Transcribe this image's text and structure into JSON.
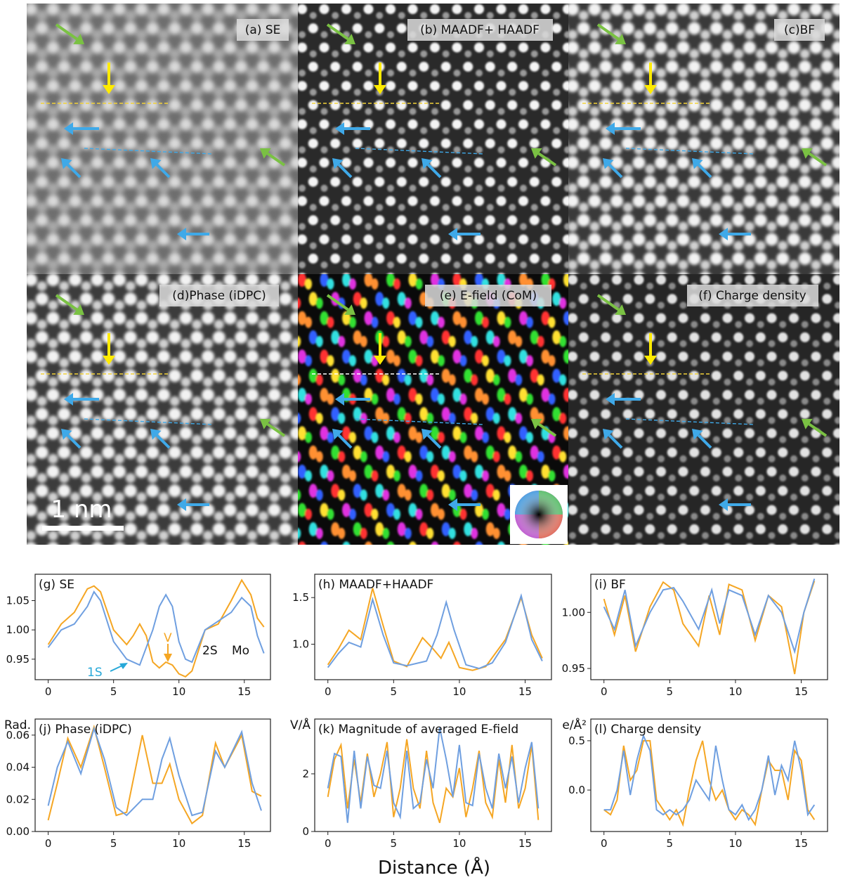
{
  "figure": {
    "image_panels": [
      {
        "label": "(a) SE",
        "mode": "gray-soft"
      },
      {
        "label": "(b) MAADF+ HAADF",
        "mode": "gray-sharp"
      },
      {
        "label": "(c)BF",
        "mode": "gray-bright"
      },
      {
        "label": "(d)Phase (iDPC)",
        "mode": "gray-bright"
      },
      {
        "label": "(e) E-field (CoM)",
        "mode": "color"
      },
      {
        "label": "(f) Charge density",
        "mode": "gray-dark"
      }
    ],
    "scale_bar_label": "1 nm",
    "colors": {
      "yellow_arrow": "#ffeb00",
      "blue_arrow": "#3fa9e8",
      "green_arrow": "#7ac143",
      "yellow_line": "#f2d23a",
      "blue_line": "#3fa9e8",
      "series_orange": "#f5a623",
      "series_blue": "#6f9fe0"
    },
    "annotations": {
      "v_label": "V",
      "s2_label": "2S",
      "mo_label": "Mo",
      "s1_label": "1S"
    },
    "xlabel": "Distance (Å)"
  },
  "chart_data": [
    {
      "type": "line",
      "title": "(g) SE",
      "ylabel": "",
      "xlim": [
        -1,
        17
      ],
      "ylim": [
        0.915,
        1.095
      ],
      "xticks": [
        0,
        5,
        10,
        15
      ],
      "xtick_labels": [
        "0",
        "5",
        "10",
        "15"
      ],
      "yticks": [
        0.95,
        1.0,
        1.05
      ],
      "ytick_labels": [
        "0.95",
        "1.00",
        "1.05"
      ],
      "series": [
        {
          "name": "orange",
          "x": [
            0,
            1,
            2,
            3,
            3.5,
            4,
            5,
            6,
            6.5,
            7,
            7.5,
            8,
            8.5,
            9,
            9.5,
            10,
            10.5,
            11,
            12,
            13,
            14,
            14.8,
            15.5,
            16,
            16.5
          ],
          "y": [
            0.975,
            1.01,
            1.03,
            1.07,
            1.075,
            1.065,
            1.0,
            0.975,
            0.99,
            1.01,
            0.99,
            0.945,
            0.935,
            0.945,
            0.94,
            0.925,
            0.92,
            0.93,
            1.0,
            1.01,
            1.05,
            1.085,
            1.06,
            1.02,
            1.005
          ]
        },
        {
          "name": "blue",
          "x": [
            0,
            1,
            2,
            3,
            3.5,
            4,
            5,
            6,
            7,
            8,
            8.5,
            9,
            9.5,
            10,
            10.5,
            11,
            12,
            13,
            14,
            14.8,
            15.5,
            16,
            16.5
          ],
          "y": [
            0.97,
            1.0,
            1.01,
            1.04,
            1.065,
            1.05,
            0.98,
            0.95,
            0.94,
            1.0,
            1.04,
            1.06,
            1.04,
            0.98,
            0.95,
            0.945,
            1.0,
            1.015,
            1.03,
            1.055,
            1.04,
            0.99,
            0.96
          ]
        }
      ]
    },
    {
      "type": "line",
      "title": "(h) MAADF+HAADF",
      "ylabel": "",
      "xlim": [
        -1,
        17
      ],
      "ylim": [
        0.62,
        1.75
      ],
      "xticks": [
        0,
        5,
        10,
        15
      ],
      "xtick_labels": [
        "0",
        "5",
        "10",
        "15"
      ],
      "yticks": [
        1.0,
        1.5
      ],
      "ytick_labels": [
        "1.0",
        "1.5"
      ],
      "series": [
        {
          "name": "orange",
          "x": [
            0,
            0.8,
            1.6,
            2.5,
            3.4,
            4.2,
            5,
            6,
            7.2,
            8,
            8.6,
            9.2,
            10,
            11,
            12,
            13.5,
            14.7,
            15.5,
            16.3
          ],
          "y": [
            0.78,
            0.95,
            1.15,
            1.05,
            1.6,
            1.2,
            0.82,
            0.76,
            1.07,
            0.95,
            0.85,
            1.02,
            0.75,
            0.72,
            0.76,
            1.05,
            1.5,
            1.1,
            0.85
          ]
        },
        {
          "name": "blue",
          "x": [
            0,
            0.8,
            1.6,
            2.5,
            3.4,
            4.2,
            5,
            6,
            7.5,
            8.3,
            9,
            9.6,
            10.5,
            11.5,
            12.5,
            13.5,
            14.7,
            15.5,
            16.3
          ],
          "y": [
            0.75,
            0.9,
            1.02,
            0.97,
            1.48,
            1.1,
            0.8,
            0.77,
            0.82,
            1.1,
            1.45,
            1.15,
            0.78,
            0.74,
            0.8,
            1.02,
            1.52,
            1.05,
            0.82
          ]
        }
      ]
    },
    {
      "type": "line",
      "title": "(i) BF",
      "ylabel": "",
      "xlim": [
        -1,
        17
      ],
      "ylim": [
        0.94,
        1.034
      ],
      "xticks": [
        0,
        5,
        10,
        15
      ],
      "xtick_labels": [
        "0",
        "5",
        "10",
        "15"
      ],
      "yticks": [
        0.95,
        1.0
      ],
      "ytick_labels": [
        "0.95",
        "1.00"
      ],
      "series": [
        {
          "name": "orange",
          "x": [
            0,
            0.8,
            1.6,
            2.4,
            3.5,
            4.5,
            5.3,
            6,
            7.2,
            8,
            8.8,
            9.5,
            10.5,
            11.5,
            12.5,
            13.5,
            14.5,
            15.2,
            16
          ],
          "y": [
            1.012,
            0.98,
            1.015,
            0.965,
            1.005,
            1.027,
            1.02,
            0.99,
            0.97,
            1.015,
            0.98,
            1.025,
            1.02,
            0.975,
            1.015,
            1.005,
            0.945,
            1.0,
            1.028
          ]
        },
        {
          "name": "blue",
          "x": [
            0,
            0.8,
            1.6,
            2.4,
            3.5,
            4.5,
            5.3,
            6,
            7.2,
            8.2,
            8.8,
            9.5,
            10.5,
            11.5,
            12.5,
            13.5,
            14.5,
            15.2,
            16
          ],
          "y": [
            1.005,
            0.985,
            1.02,
            0.97,
            1.0,
            1.02,
            1.022,
            1.01,
            0.985,
            1.02,
            0.99,
            1.02,
            1.015,
            0.98,
            1.015,
            1.0,
            0.965,
            1.0,
            1.03
          ]
        }
      ]
    },
    {
      "type": "line",
      "title": "(j) Phase (iDPC)",
      "ylabel": "Rad.",
      "xlim": [
        -1,
        17
      ],
      "ylim": [
        0,
        0.07
      ],
      "xticks": [
        0,
        5,
        10,
        15
      ],
      "xtick_labels": [
        "0",
        "5",
        "10",
        "15"
      ],
      "yticks": [
        0.0,
        0.02,
        0.04,
        0.06
      ],
      "ytick_labels": [
        "0.00",
        "0.02",
        "0.04",
        "0.06"
      ],
      "series": [
        {
          "name": "orange",
          "x": [
            0,
            0.7,
            1.5,
            2.5,
            3.5,
            4.3,
            5.2,
            6,
            7.2,
            8,
            8.7,
            9.3,
            10,
            11,
            11.8,
            12.8,
            13.5,
            14.8,
            15.6,
            16.3
          ],
          "y": [
            0.007,
            0.03,
            0.058,
            0.04,
            0.065,
            0.04,
            0.01,
            0.012,
            0.06,
            0.03,
            0.03,
            0.042,
            0.02,
            0.005,
            0.01,
            0.055,
            0.04,
            0.06,
            0.025,
            0.022
          ]
        },
        {
          "name": "blue",
          "x": [
            0,
            0.7,
            1.5,
            2.5,
            3.5,
            4.3,
            5.2,
            6,
            7.2,
            8,
            8.7,
            9.3,
            10,
            11,
            11.8,
            12.8,
            13.5,
            14.8,
            15.6,
            16.3
          ],
          "y": [
            0.016,
            0.04,
            0.056,
            0.036,
            0.064,
            0.045,
            0.015,
            0.01,
            0.02,
            0.02,
            0.045,
            0.058,
            0.035,
            0.01,
            0.012,
            0.05,
            0.04,
            0.062,
            0.03,
            0.013
          ]
        }
      ]
    },
    {
      "type": "line",
      "title": "(k) Magnitude of averaged E-field",
      "ylabel": "V/Å",
      "xlim": [
        -1,
        17
      ],
      "ylim": [
        0,
        3.9
      ],
      "xticks": [
        0,
        5,
        10,
        15
      ],
      "xtick_labels": [
        "0",
        "5",
        "10",
        "15"
      ],
      "yticks": [
        0,
        2
      ],
      "ytick_labels": [
        "0",
        "2"
      ],
      "series": [
        {
          "name": "orange",
          "x": [
            0,
            0.5,
            1,
            1.5,
            2,
            2.5,
            3,
            3.5,
            4,
            4.5,
            5,
            5.5,
            6,
            6.5,
            7,
            7.5,
            8,
            8.5,
            9,
            9.5,
            10,
            10.5,
            11,
            11.5,
            12,
            12.5,
            13,
            13.5,
            14,
            14.5,
            15,
            15.5,
            16
          ],
          "y": [
            1.2,
            2.5,
            3.0,
            0.8,
            2.5,
            1.0,
            2.7,
            1.2,
            2.0,
            3.1,
            0.5,
            1.5,
            3.2,
            1.5,
            0.8,
            2.8,
            1.0,
            0.3,
            1.5,
            1.2,
            2.2,
            0.5,
            1.5,
            2.8,
            1.0,
            0.5,
            2.5,
            1.0,
            3.0,
            0.8,
            1.5,
            3.0,
            0.4
          ]
        },
        {
          "name": "blue",
          "x": [
            0,
            0.5,
            1,
            1.5,
            2,
            2.5,
            3,
            3.5,
            4,
            4.5,
            5,
            5.5,
            6,
            6.5,
            7,
            7.5,
            8,
            8.5,
            9,
            9.5,
            10,
            10.5,
            11,
            11.5,
            12,
            12.5,
            13,
            13.5,
            14,
            14.5,
            15,
            15.5,
            16
          ],
          "y": [
            1.5,
            2.7,
            2.6,
            0.3,
            2.8,
            0.8,
            2.6,
            1.6,
            1.5,
            2.8,
            1.0,
            0.5,
            2.8,
            0.8,
            1.0,
            2.5,
            1.5,
            3.6,
            2.5,
            1.2,
            3.0,
            1.0,
            0.9,
            2.7,
            1.5,
            0.8,
            2.7,
            1.5,
            2.6,
            1.0,
            2.2,
            3.1,
            0.8
          ]
        }
      ]
    },
    {
      "type": "line",
      "title": "(l) Charge density",
      "ylabel": "e/Å²",
      "xlim": [
        -1,
        17
      ],
      "ylim": [
        -0.42,
        0.72
      ],
      "xticks": [
        0,
        5,
        10,
        15
      ],
      "xtick_labels": [
        "0",
        "5",
        "10",
        "15"
      ],
      "yticks": [
        0.0,
        0.5
      ],
      "ytick_labels": [
        "0.0",
        "0.5"
      ],
      "series": [
        {
          "name": "orange",
          "x": [
            0,
            0.5,
            1,
            1.5,
            2,
            2.5,
            3,
            3.5,
            4,
            4.5,
            5,
            5.5,
            6,
            6.5,
            7,
            7.5,
            8,
            8.5,
            9,
            9.5,
            10,
            10.5,
            11,
            11.5,
            12,
            12.5,
            13,
            13.5,
            14,
            14.5,
            15,
            15.5,
            16
          ],
          "y": [
            -0.2,
            -0.25,
            -0.1,
            0.45,
            0.1,
            0.2,
            0.5,
            0.5,
            -0.1,
            -0.2,
            -0.3,
            -0.2,
            -0.35,
            0.0,
            0.3,
            0.5,
            0.1,
            -0.1,
            0.0,
            -0.2,
            -0.3,
            -0.2,
            -0.25,
            -0.35,
            0.0,
            0.3,
            0.2,
            0.2,
            -0.1,
            0.4,
            0.3,
            -0.2,
            -0.3
          ]
        },
        {
          "name": "blue",
          "x": [
            0,
            0.5,
            1,
            1.5,
            2,
            2.5,
            3,
            3.5,
            4,
            4.5,
            5,
            5.5,
            6,
            6.5,
            7,
            7.5,
            8,
            8.5,
            9,
            9.5,
            10,
            10.5,
            11,
            11.5,
            12,
            12.5,
            13,
            13.5,
            14,
            14.5,
            15,
            15.5,
            16
          ],
          "y": [
            -0.2,
            -0.2,
            0.0,
            0.4,
            -0.05,
            0.3,
            0.55,
            0.4,
            -0.2,
            -0.25,
            -0.2,
            -0.25,
            -0.2,
            -0.1,
            0.1,
            0.0,
            -0.1,
            0.45,
            0.1,
            -0.2,
            -0.25,
            -0.15,
            -0.3,
            -0.2,
            0.0,
            0.35,
            -0.05,
            0.25,
            0.1,
            0.5,
            0.2,
            -0.25,
            -0.15
          ]
        }
      ]
    }
  ]
}
